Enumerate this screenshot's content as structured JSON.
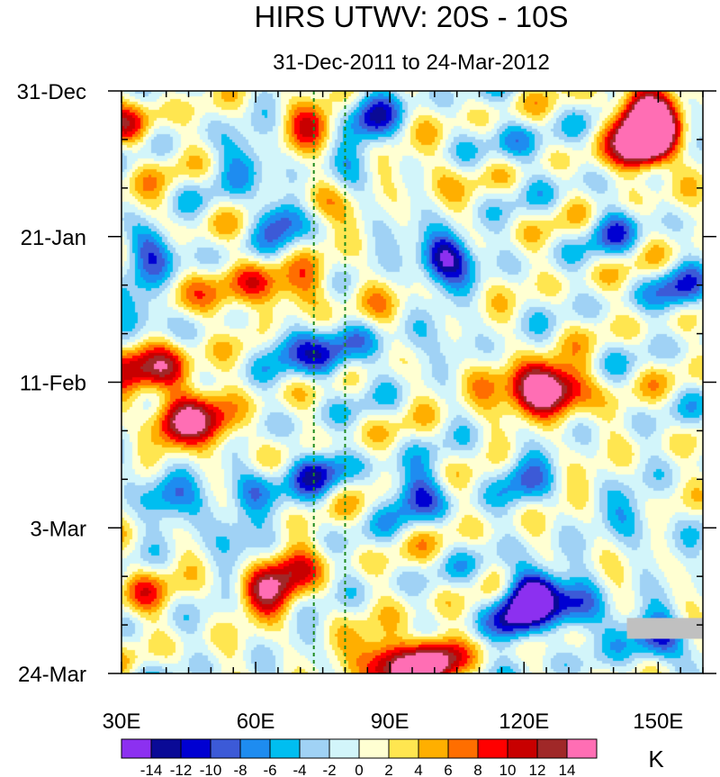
{
  "chart_data": {
    "type": "heatmap",
    "title": "HIRS UTWV: 20S - 10S",
    "subtitle": "31-Dec-2011 to 24-Mar-2012",
    "x_axis": {
      "range": [
        30,
        160
      ],
      "ticks": [
        30,
        60,
        90,
        120,
        150
      ],
      "tick_labels": [
        "30E",
        "60E",
        "90E",
        "120E",
        "150E"
      ],
      "minor_step": 5
    },
    "y_axis": {
      "range_days": [
        0,
        84
      ],
      "reversed": true,
      "ticks": [
        0,
        21,
        42,
        63,
        84
      ],
      "tick_labels": [
        "31-Dec",
        "21-Jan",
        "11-Feb",
        "3-Mar",
        "24-Mar"
      ],
      "minor_step": 7
    },
    "reference_lines_lon": [
      73,
      80
    ],
    "colorbar": {
      "unit": "K",
      "levels": [
        -14,
        -12,
        -10,
        -8,
        -6,
        -4,
        -2,
        0,
        2,
        4,
        6,
        8,
        10,
        12,
        14
      ],
      "labels": [
        "-14",
        "-12",
        "-10",
        "-8",
        "-6",
        "-4",
        "-2",
        "0",
        "2",
        "4",
        "6",
        "8",
        "10",
        "12",
        "14"
      ],
      "colors": [
        "#8c30f0",
        "#0a0a96",
        "#0000d2",
        "#3c5ad7",
        "#1e8cf0",
        "#00bef0",
        "#a0d2f5",
        "#d2f5fa",
        "#ffffd2",
        "#ffe650",
        "#ffaf00",
        "#ff6e00",
        "#ff0000",
        "#c80000",
        "#a02828",
        "#ff6eb4"
      ]
    },
    "missing_data": {
      "lon_range": [
        143,
        160
      ],
      "day_range": [
        76,
        79
      ],
      "color": "#c0c0c0"
    },
    "features": [
      {
        "lon": 102,
        "day": 24,
        "value": -15
      },
      {
        "lon": 148,
        "day": 7,
        "value": 12
      },
      {
        "lon": 150,
        "day": 4,
        "value": 10
      },
      {
        "lon": 146,
        "day": 3,
        "value": 10
      },
      {
        "lon": 146,
        "day": 8,
        "value": 14
      },
      {
        "lon": 123,
        "day": 43,
        "value": 15
      },
      {
        "lon": 130,
        "day": 43,
        "value": 10
      },
      {
        "lon": 112,
        "day": 42,
        "value": 8
      },
      {
        "lon": 100,
        "day": 82,
        "value": 15
      },
      {
        "lon": 88,
        "day": 82,
        "value": 10
      },
      {
        "lon": 92,
        "day": 84,
        "value": 9
      },
      {
        "lon": 62,
        "day": 72,
        "value": 11
      },
      {
        "lon": 68,
        "day": 69,
        "value": 9
      },
      {
        "lon": 42,
        "day": 48,
        "value": 11
      },
      {
        "lon": 52,
        "day": 49,
        "value": 7
      },
      {
        "lon": 40,
        "day": 40,
        "value": 10
      },
      {
        "lon": 32,
        "day": 40,
        "value": 9
      },
      {
        "lon": 60,
        "day": 28,
        "value": 7
      },
      {
        "lon": 52,
        "day": 31,
        "value": 6
      },
      {
        "lon": 70,
        "day": 29,
        "value": 6
      },
      {
        "lon": 72,
        "day": 5,
        "value": 8
      },
      {
        "lon": 32,
        "day": 5,
        "value": 8
      },
      {
        "lon": 74,
        "day": 16,
        "value": 7
      },
      {
        "lon": 48,
        "day": 46,
        "value": 5
      },
      {
        "lon": 35,
        "day": 72,
        "value": 6
      },
      {
        "lon": 36,
        "day": 18,
        "value": 4
      },
      {
        "lon": 84,
        "day": 30,
        "value": 4
      },
      {
        "lon": 100,
        "day": 12,
        "value": 4
      },
      {
        "lon": 118,
        "day": 76,
        "value": -12
      },
      {
        "lon": 132,
        "day": 75,
        "value": -11
      },
      {
        "lon": 122,
        "day": 72,
        "value": -14
      },
      {
        "lon": 150,
        "day": 79,
        "value": -11
      },
      {
        "lon": 96,
        "day": 58,
        "value": -10
      },
      {
        "lon": 86,
        "day": 4,
        "value": -10
      },
      {
        "lon": 66,
        "day": 18,
        "value": -10
      },
      {
        "lon": 36,
        "day": 22,
        "value": -10
      },
      {
        "lon": 76,
        "day": 39,
        "value": -7
      },
      {
        "lon": 66,
        "day": 36,
        "value": -7
      },
      {
        "lon": 82,
        "day": 36,
        "value": -6
      },
      {
        "lon": 40,
        "day": 58,
        "value": -8
      },
      {
        "lon": 60,
        "day": 57,
        "value": -7
      },
      {
        "lon": 74,
        "day": 55,
        "value": -9
      },
      {
        "lon": 140,
        "day": 20,
        "value": -6
      },
      {
        "lon": 155,
        "day": 29,
        "value": -8
      },
      {
        "lon": 120,
        "day": 56,
        "value": -7
      },
      {
        "lon": 118,
        "day": 8,
        "value": -5
      },
      {
        "lon": 106,
        "day": 38,
        "value": -5
      },
      {
        "lon": 145,
        "day": 62,
        "value": -5
      },
      {
        "lon": 55,
        "day": 64,
        "value": -6
      },
      {
        "lon": 34,
        "day": 32,
        "value": -7
      },
      {
        "lon": 80,
        "day": 12,
        "value": -4
      },
      {
        "lon": 58,
        "day": 10,
        "value": -6
      }
    ]
  }
}
